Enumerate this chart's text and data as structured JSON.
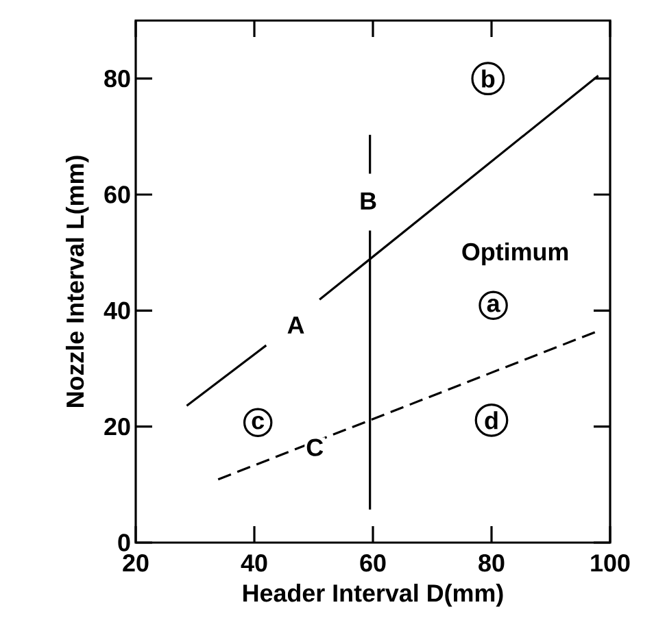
{
  "chart_data": {
    "type": "line",
    "xlabel": "Header Interval   D(mm)",
    "ylabel": "Nozzle Interval  L(mm)",
    "xlim": [
      20,
      100
    ],
    "ylim": [
      0,
      90
    ],
    "xticks": [
      20,
      40,
      60,
      80,
      100
    ],
    "yticks": [
      0,
      20,
      40,
      60,
      80
    ],
    "grid": false,
    "marker": "none",
    "series": [
      {
        "color": "#000000",
        "line_style": "solid",
        "x": [
          28.6,
          42
        ],
        "values": [
          23.6,
          34
        ]
      },
      {
        "color": "#000000",
        "line_style": "solid",
        "x": [
          51,
          98
        ],
        "values": [
          41.9,
          80.5
        ]
      },
      {
        "color": "#000000",
        "line_style": "solid",
        "x": [
          59.5,
          59.5
        ],
        "values": [
          70.3,
          63.6
        ]
      },
      {
        "color": "#000000",
        "line_style": "solid",
        "x": [
          59.5,
          59.5
        ],
        "values": [
          53.8,
          5.7
        ]
      },
      {
        "color": "#000000",
        "line_style": "dashed",
        "x": [
          33.9,
          59.5,
          98
        ],
        "values": [
          10.9,
          21.1,
          36.5
        ]
      }
    ],
    "annotations": [
      {
        "text": "A",
        "x": 47,
        "y": 37.5
      },
      {
        "text": "B",
        "x": 59.2,
        "y": 58.9
      },
      {
        "text": "C",
        "x": 50.2,
        "y": 16.4
      },
      "Optimum",
      {
        "text": "a",
        "x": 80.3,
        "y": 40.9
      },
      {
        "text": "b",
        "x": 79.4,
        "y": 80
      },
      {
        "text": "c",
        "x": 40.6,
        "y": 20.7
      },
      {
        "text": "d",
        "x": 80,
        "y": 21.1
      }
    ]
  }
}
